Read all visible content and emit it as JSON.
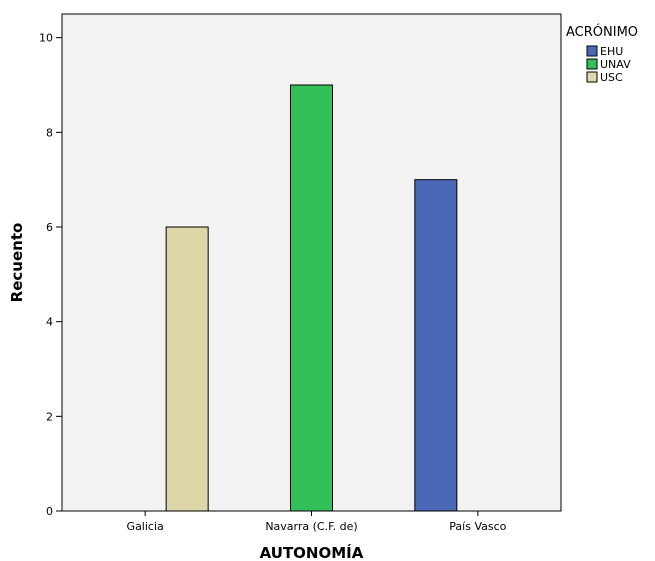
{
  "title": "",
  "chart_data": {
    "type": "bar",
    "xlabel": "AUTONOMÍA",
    "ylabel": "Recuento",
    "categories": [
      "Galicia",
      "Navarra (C.F. de)",
      "País Vasco"
    ],
    "ylim": [
      0,
      10.5
    ],
    "yticks": [
      "0",
      "2",
      "4",
      "6",
      "8",
      "10"
    ],
    "grid": false,
    "legend": {
      "title": "ACRÓNIMO",
      "position": "top-right",
      "entries": [
        "EHU",
        "UNAV",
        "USC"
      ]
    },
    "series": [
      {
        "name": "EHU",
        "color": "#4a68b5",
        "values": [
          null,
          null,
          7
        ]
      },
      {
        "name": "UNAV",
        "color": "#33bf57",
        "values": [
          null,
          9,
          null
        ]
      },
      {
        "name": "USC",
        "color": "#dcd6a8",
        "values": [
          6,
          null,
          null
        ]
      }
    ]
  },
  "colors": {
    "plot_bg": "#f2f2f2",
    "axis": "#000000"
  }
}
